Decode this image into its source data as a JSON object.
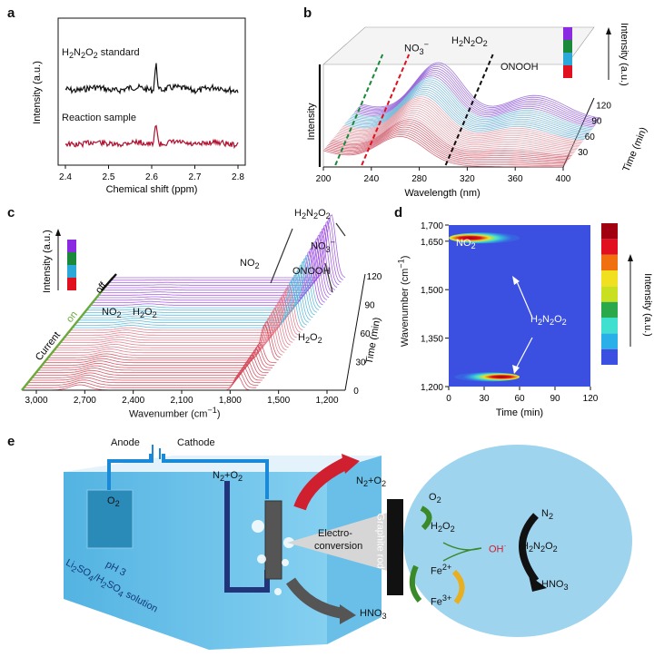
{
  "panel_labels": {
    "a": "a",
    "b": "b",
    "c": "c",
    "d": "d",
    "e": "e"
  },
  "chart_data": [
    {
      "panel": "a",
      "type": "line",
      "xlabel": "Chemical shift (ppm)",
      "ylabel": "Intensity (a.u.)",
      "xlim": [
        2.4,
        2.8
      ],
      "x_ticks": [
        "2.4",
        "2.5",
        "2.6",
        "2.7",
        "2.8"
      ],
      "series": [
        {
          "name": "H2N2O2 standard",
          "label_html": "H<sub>2</sub>N<sub>2</sub>O<sub>2</sub> standard",
          "color": "#111111",
          "peak_ppm": 2.61
        },
        {
          "name": "Reaction sample",
          "label_html": "Reaction sample",
          "color": "#b0102e",
          "peak_ppm": 2.61
        }
      ]
    },
    {
      "panel": "b",
      "type": "line",
      "xlabel": "Wavelength (nm)",
      "ylabel": "Intensity",
      "zlabel": "Time (min)",
      "xlim": [
        200,
        400
      ],
      "x_ticks": [
        "200",
        "240",
        "280",
        "320",
        "360",
        "400"
      ],
      "time_ticks": [
        "30",
        "60",
        "90",
        "120"
      ],
      "colorbar_label": "Intensity (a.u.)",
      "colorbar_colors": [
        "#e0101e",
        "#2aa8d8",
        "#1a8a3a",
        "#8a2be2"
      ],
      "annotations": [
        {
          "text": "NO3−",
          "html": "NO<sub>3</sub><sup>−</sup>",
          "x_nm": 210,
          "color": "#1a8a3a"
        },
        {
          "text": "H2N2O2",
          "html": "H<sub>2</sub>N<sub>2</sub>O<sub>2</sub>",
          "x_nm": 232,
          "color": "#e0101e"
        },
        {
          "text": "ONOOH",
          "html": "ONOOH",
          "x_nm": 302,
          "color": "#111111"
        }
      ]
    },
    {
      "panel": "c",
      "type": "line",
      "xlabel": "Wavenumber (cm−1)",
      "xlabel_html": "Wavenumber (cm<sup>−1</sup>)",
      "ylabel": "Intensity (a.u.)",
      "zlabel": "Time (min)",
      "x_ticks": [
        "3,000",
        "2,700",
        "2,400",
        "2,100",
        "1,800",
        "1,500",
        "1,200"
      ],
      "time_ticks": [
        "0",
        "30",
        "60",
        "90",
        "120"
      ],
      "axis_labels": {
        "current": "Current",
        "on": "on",
        "off": "off"
      },
      "colorbar_colors": [
        "#e0101e",
        "#2aa8d8",
        "#1a8a3a",
        "#8a2be2"
      ],
      "annotations": [
        {
          "text": "H2N2O2",
          "html": "H<sub>2</sub>N<sub>2</sub>O<sub>2</sub>"
        },
        {
          "text": "NO2",
          "html": "NO<sub>2</sub>"
        },
        {
          "text": "NO3−",
          "html": "NO<sub>3</sub><sup>−</sup>"
        },
        {
          "text": "ONOOH",
          "html": "ONOOH"
        },
        {
          "text": "H2O2",
          "html": "H<sub>2</sub>O<sub>2</sub>"
        },
        {
          "text": "NO2",
          "html": "NO<sub>2</sub>"
        },
        {
          "text": "H2O2",
          "html": "H<sub>2</sub>O<sub>2</sub>"
        }
      ]
    },
    {
      "panel": "d",
      "type": "heatmap",
      "xlabel": "Time (min)",
      "ylabel": "Wavenumber (cm−1)",
      "ylabel_html": "Wavenumber (cm<sup>−1</sup>)",
      "xlim": [
        0,
        120
      ],
      "ylim": [
        1200,
        1700
      ],
      "x_ticks": [
        "0",
        "30",
        "60",
        "90",
        "120"
      ],
      "y_ticks": [
        "1,200",
        "1,350",
        "1,500",
        "1,650",
        "1,700"
      ],
      "background_color": "#3b4fe0",
      "colorbar_label": "Intensity (a.u.)",
      "colorbar_colors": [
        "#3b4fe0",
        "#2ab0e8",
        "#40e0d0",
        "#2aa84a",
        "#c8e020",
        "#f0e020",
        "#f07010",
        "#e01020",
        "#a00010"
      ],
      "bands": [
        {
          "wavenumber": 1660,
          "time_start": 0,
          "time_end": 60,
          "peak_time": 10,
          "label": "NO2",
          "label_html": "NO<sub>2</sub>"
        },
        {
          "wavenumber": 1230,
          "time_start": 5,
          "time_end": 60,
          "peak_time": 50,
          "label": "",
          "label_html": ""
        }
      ],
      "annotation": {
        "text": "H2N2O2",
        "html": "H<sub>2</sub>N<sub>2</sub>O<sub>2</sub>"
      }
    }
  ],
  "schematic_e": {
    "anode": "Anode",
    "cathode": "Cathode",
    "gas_in": "N2+O2",
    "gas_in_html": "N<sub>2</sub>+O<sub>2</sub>",
    "gas_out": "N2+O2",
    "gas_out_html": "N<sub>2</sub>+O<sub>2</sub>",
    "o2": "O2",
    "o2_html": "O<sub>2</sub>",
    "solution_line1": "Li2SO4/H2SO4 solution",
    "solution_line1_html": "Li<sub>2</sub>SO<sub>4</sub>/H<sub>2</sub>SO<sub>4</sub> solution",
    "solution_line2": "pH 3",
    "hno3": "HNO3",
    "hno3_html": "HNO<sub>3</sub>",
    "electro1": "Electro-",
    "electro2": "conversion",
    "graphite_rod": "Graphite rod",
    "bubble": {
      "o2": "O2",
      "o2_html": "O<sub>2</sub>",
      "h2o2": "H2O2",
      "h2o2_html": "H<sub>2</sub>O<sub>2</sub>",
      "oh": "OH·",
      "oh_html": "OH<sup>·</sup>",
      "fe2": "Fe2+",
      "fe2_html": "Fe<sup>2+</sup>",
      "fe3": "Fe3+",
      "fe3_html": "Fe<sup>3+</sup>",
      "n2": "N2",
      "n2_html": "N<sub>2</sub>",
      "h2n2o2": "H2N2O2",
      "h2n2o2_html": "H<sub>2</sub>N<sub>2</sub>O<sub>2</sub>",
      "hno3": "HNO3",
      "hno3_html": "HNO<sub>3</sub>"
    }
  }
}
